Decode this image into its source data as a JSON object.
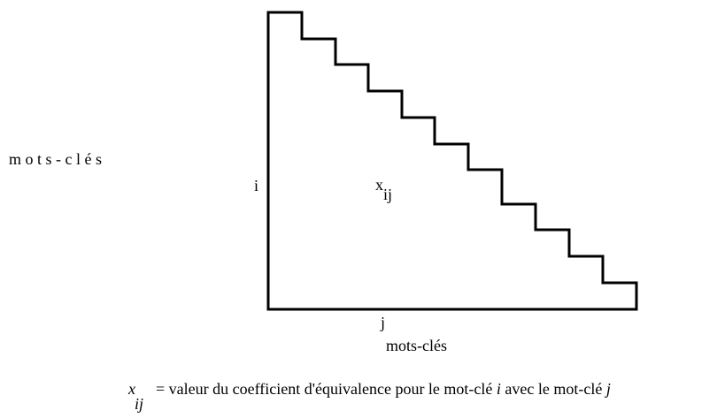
{
  "side_label": "m o t s - c l é s",
  "row_index": "i",
  "cell": {
    "symbol": "x",
    "subscript": "ij"
  },
  "column_index": "j",
  "bottom_label": "mots-clés",
  "legend": {
    "symbol": "x",
    "subscript": "ij",
    "text_before": "= valeur du coefficient d'équivalence pour le mot-clé",
    "var_i": "i",
    "text_middle": "avec le mot-clé",
    "var_j": "j"
  }
}
